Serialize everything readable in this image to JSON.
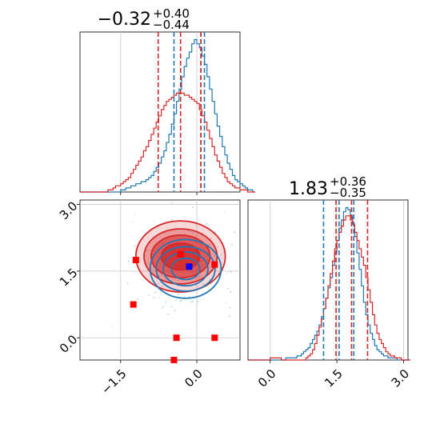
{
  "colors": {
    "blue": "#1f77b4",
    "red": "#d62728",
    "grid": "#c8c8c8",
    "marker_blue": "#0000ff",
    "marker_red": "#ff0000"
  },
  "chart_data": [
    {
      "type": "histogram",
      "panel": "top-left",
      "title_main": "−0.32",
      "title_sup": "+0.40",
      "title_sub": "−0.44",
      "xlim": [
        -2.3,
        0.85
      ],
      "xticks": [
        -1.5,
        0.0
      ],
      "grid": true,
      "blue_quantiles": [
        -0.45,
        0.08,
        0.15
      ],
      "red_quantiles": [
        -0.76,
        -0.32,
        0.08
      ],
      "series": [
        {
          "color": "blue",
          "bins_start": -2.3,
          "bin_width": 0.05,
          "values": [
            0,
            0,
            0,
            0,
            0,
            0,
            0,
            0,
            0,
            0,
            0,
            0,
            0,
            0,
            0,
            0,
            1,
            1,
            2,
            2,
            3,
            3,
            4,
            4,
            5,
            5,
            6,
            7,
            8,
            10,
            12,
            14,
            17,
            20,
            24,
            28,
            33,
            38,
            44,
            50,
            56,
            61,
            65,
            68,
            72,
            74,
            72,
            70,
            66,
            62,
            56,
            50,
            44,
            38,
            32,
            27,
            22,
            18,
            14,
            11,
            8,
            6,
            5,
            4,
            3,
            2,
            1,
            1,
            0
          ]
        },
        {
          "color": "red",
          "bins_start": -2.3,
          "bin_width": 0.05,
          "values": [
            0,
            0,
            0,
            0,
            0,
            0,
            0,
            0,
            0,
            0,
            0,
            1,
            1,
            2,
            3,
            3,
            4,
            5,
            6,
            7,
            9,
            11,
            13,
            15,
            17,
            20,
            22,
            25,
            28,
            31,
            34,
            37,
            40,
            42,
            44,
            45,
            46,
            47,
            48,
            48,
            48,
            47,
            47,
            46,
            45,
            44,
            43,
            40,
            37,
            34,
            30,
            26,
            22,
            18,
            15,
            12,
            9,
            7,
            5,
            4,
            3,
            2,
            2,
            1,
            1,
            1,
            0,
            0,
            0
          ]
        }
      ]
    },
    {
      "type": "scatter",
      "panel": "bottom-left",
      "xlim": [
        -2.3,
        0.85
      ],
      "ylim": [
        -0.5,
        3.1
      ],
      "xticks": [
        -1.5,
        0.0
      ],
      "yticks": [
        0.0,
        1.5,
        3.0
      ],
      "grid": true,
      "contours": [
        {
          "color": "red",
          "cx": -0.32,
          "cy": 1.83,
          "levels": [
            {
              "rx": 0.38,
              "ry": 0.3,
              "alpha": 0.8
            },
            {
              "rx": 0.58,
              "ry": 0.48,
              "alpha": 0.55
            },
            {
              "rx": 0.72,
              "ry": 0.62,
              "alpha": 0.35
            },
            {
              "rx": 0.88,
              "ry": 0.8,
              "alpha": 0.18
            }
          ]
        },
        {
          "color": "blue",
          "cx": -0.22,
          "cy": 1.55,
          "levels": [
            {
              "rx": 0.28,
              "ry": 0.24
            },
            {
              "rx": 0.44,
              "ry": 0.38
            },
            {
              "rx": 0.58,
              "ry": 0.5
            },
            {
              "rx": 0.7,
              "ry": 0.66
            }
          ]
        }
      ],
      "red_markers": [
        {
          "x": -1.2,
          "y": 1.75
        },
        {
          "x": -0.32,
          "y": 1.88
        },
        {
          "x": 0.35,
          "y": 1.65
        },
        {
          "x": -1.25,
          "y": 0.75
        },
        {
          "x": -0.4,
          "y": 0.0
        },
        {
          "x": 0.35,
          "y": 0.0
        },
        {
          "x": -0.45,
          "y": -0.5
        }
      ],
      "blue_markers": [
        {
          "x": -0.15,
          "y": 1.6
        }
      ]
    },
    {
      "type": "histogram",
      "panel": "bottom-right",
      "title_main": "1.83",
      "title_sup": "+0.36",
      "title_sub": "−0.35",
      "xlim": [
        -0.5,
        3.1
      ],
      "xticks": [
        0.0,
        1.5,
        3.0
      ],
      "grid": true,
      "blue_quantiles": [
        1.2,
        1.55,
        1.88
      ],
      "red_quantiles": [
        1.48,
        1.83,
        2.19
      ],
      "series": [
        {
          "color": "blue",
          "bins_start": -0.5,
          "bin_width": 0.05,
          "values": [
            0,
            0,
            0,
            0,
            0,
            0,
            0,
            0,
            0,
            0,
            0,
            0,
            0,
            0,
            0,
            0,
            0,
            1,
            1,
            1,
            1,
            1,
            2,
            2,
            3,
            4,
            5,
            6,
            8,
            10,
            12,
            14,
            17,
            21,
            25,
            30,
            35,
            40,
            46,
            52,
            58,
            64,
            68,
            72,
            74,
            73,
            70,
            66,
            60,
            52,
            44,
            36,
            28,
            22,
            17,
            13,
            10,
            7,
            5,
            4,
            3,
            2,
            2,
            1,
            1,
            1,
            1,
            0,
            0,
            0,
            0,
            0,
            0
          ]
        },
        {
          "color": "red",
          "bins_start": -0.5,
          "bin_width": 0.05,
          "values": [
            0,
            0,
            0,
            0,
            0,
            0,
            0,
            0,
            0,
            0,
            1,
            1,
            1,
            1,
            1,
            0,
            0,
            0,
            0,
            0,
            0,
            0,
            0,
            0,
            0,
            0,
            1,
            2,
            3,
            5,
            8,
            12,
            16,
            20,
            25,
            30,
            36,
            42,
            48,
            54,
            58,
            62,
            65,
            68,
            70,
            70,
            68,
            66,
            62,
            58,
            54,
            50,
            46,
            40,
            34,
            28,
            22,
            17,
            13,
            10,
            8,
            6,
            4,
            3,
            2,
            2,
            1,
            1,
            1,
            0,
            0,
            0,
            0
          ]
        }
      ]
    }
  ]
}
